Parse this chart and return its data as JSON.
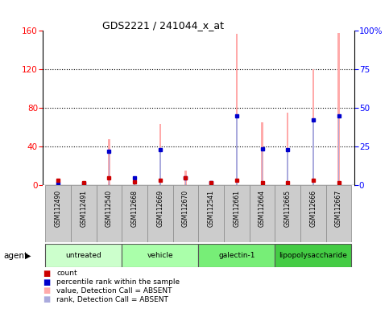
{
  "title": "GDS2221 / 241044_x_at",
  "samples": [
    "GSM112490",
    "GSM112491",
    "GSM112540",
    "GSM112668",
    "GSM112669",
    "GSM112670",
    "GSM112541",
    "GSM112661",
    "GSM112664",
    "GSM112665",
    "GSM112666",
    "GSM112667"
  ],
  "groups": [
    {
      "label": "untreated",
      "indices": [
        0,
        1,
        2
      ],
      "color": "#ccffcc"
    },
    {
      "label": "vehicle",
      "indices": [
        3,
        4,
        5
      ],
      "color": "#aaffaa"
    },
    {
      "label": "galectin-1",
      "indices": [
        6,
        7,
        8
      ],
      "color": "#77ee77"
    },
    {
      "label": "lipopolysaccharide",
      "indices": [
        9,
        10,
        11
      ],
      "color": "#44cc44"
    }
  ],
  "count_values": [
    5,
    3,
    8,
    4,
    5,
    8,
    3,
    5,
    3,
    3,
    5,
    3
  ],
  "percentile_rank_values": [
    2,
    2,
    35,
    8,
    37,
    8,
    3,
    72,
    38,
    37,
    68,
    72
  ],
  "pink_bar_values": [
    6,
    4,
    48,
    9,
    64,
    15,
    4,
    157,
    65,
    75,
    120,
    158
  ],
  "blue_rank_values": [
    2,
    2,
    35,
    8,
    37,
    8,
    3,
    72,
    38,
    37,
    68,
    72
  ],
  "ylim_left": [
    0,
    160
  ],
  "ylim_right": [
    0,
    100
  ],
  "yticks_left": [
    0,
    40,
    80,
    120,
    160
  ],
  "yticks_right": [
    0,
    25,
    50,
    75,
    100
  ],
  "yticklabels_right": [
    "0",
    "25",
    "50",
    "75",
    "100%"
  ],
  "count_color": "#cc0000",
  "percentile_color": "#0000cc",
  "pink_color": "#ffaaaa",
  "blue_color": "#aaaadd",
  "grid_color": "black",
  "thin_bar_width": 0.08,
  "legend_items": [
    {
      "color": "#cc0000",
      "label": "count"
    },
    {
      "color": "#0000cc",
      "label": "percentile rank within the sample"
    },
    {
      "color": "#ffaaaa",
      "label": "value, Detection Call = ABSENT"
    },
    {
      "color": "#aaaadd",
      "label": "rank, Detection Call = ABSENT"
    }
  ]
}
